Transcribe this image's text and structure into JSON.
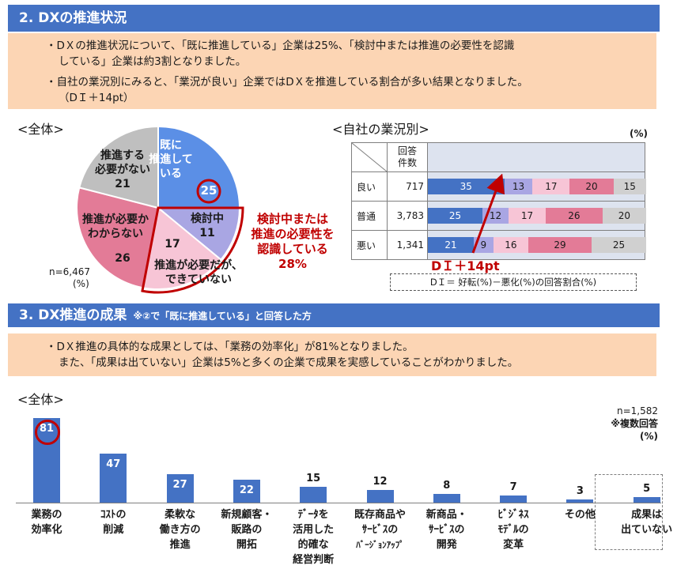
{
  "section2": {
    "title": "2. DXの推進状況",
    "note1_line1": "・DＸの推進状況について、「既に推進している」企業は25%、「検討中または推進の必要性を認識",
    "note1_line2": "している」企業は約3割となりました。",
    "note2_line1": "・自社の業況別にみると、「業況が良い」企業ではDＸを推進している割合が多い結果となりました。",
    "note2_line2": "（DＩ＋14pt）",
    "overall_label": "<全体>",
    "by_status_label": "<自社の業況別>",
    "pct_unit": "(%)",
    "pie_n": "n=6,467",
    "pie_unit": "(%)",
    "callout_l1": "検討中または",
    "callout_l2": "推進の必要性を",
    "callout_l3": "認識している",
    "callout_l4": "28%",
    "di_label": "DＩ＋14pt",
    "di_formula": "DＩ＝ 好転(%)－悪化(%)の回答割合(%)"
  },
  "pie_chart": {
    "type": "pie",
    "slices": [
      {
        "label_l1": "既に",
        "label_l2": "推進して",
        "label_l3": "いる",
        "value": 25,
        "color": "#5b8fe6"
      },
      {
        "label_l1": "検討中",
        "value": 11,
        "color": "#a9a6e3"
      },
      {
        "label_l1": "推進が必要だが、",
        "label_l2": "できていない",
        "value": 17,
        "color": "#f7c5d6"
      },
      {
        "label_l1": "推進が必要か",
        "label_l2": "わからない",
        "value": 26,
        "color": "#e37b97"
      },
      {
        "label_l1": "推進する",
        "label_l2": "必要がない",
        "value": 21,
        "color": "#bfbfbf"
      }
    ]
  },
  "status_table": {
    "header_count_l1": "回答",
    "header_count_l2": "件数",
    "segment_colors": [
      "#4472c4",
      "#a9a6e3",
      "#f7c5d6",
      "#e37b97",
      "#d0d0d0"
    ],
    "rows": [
      {
        "label": "良い",
        "count": "717",
        "values": [
          35,
          13,
          17,
          20,
          15
        ]
      },
      {
        "label": "普通",
        "count": "3,783",
        "values": [
          25,
          12,
          17,
          26,
          20
        ]
      },
      {
        "label": "悪い",
        "count": "1,341",
        "values": [
          21,
          9,
          16,
          29,
          25
        ]
      }
    ]
  },
  "section3": {
    "title": "3. DX推進の成果",
    "subtitle": "※②で「既に推進している」と回答した方",
    "note_line1": "・DＸ推進の具体的な成果としては、「業務の効率化」が81%となりました。",
    "note_line2": "また、「成果は出ていない」企業は5%と多くの企業で成果を実感していることがわかりました。",
    "overall_label": "<全体>",
    "n_label": "n=1,582",
    "multi_label": "※複数回答",
    "unit": "(%)"
  },
  "chart_data": {
    "type": "bar",
    "categories": [
      [
        "業務の",
        "効率化"
      ],
      [
        "ｺｽﾄの",
        "削減"
      ],
      [
        "柔軟な",
        "働き方の",
        "推進"
      ],
      [
        "新規顧客・",
        "販路の",
        "開拓"
      ],
      [
        "ﾃﾞｰﾀを",
        "活用した",
        "的確な",
        "経営判断"
      ],
      [
        "既存商品や",
        "ｻｰﾋﾞｽの",
        "ﾊﾞｰｼﾞｮﾝｱｯﾌﾟ"
      ],
      [
        "新商品・",
        "ｻｰﾋﾞｽの",
        "開発"
      ],
      [
        "ﾋﾞｼﾞﾈｽ",
        "ﾓﾃﾞﾙの",
        "変革"
      ],
      [
        "その他"
      ],
      [
        "成果は",
        "出ていない"
      ]
    ],
    "values": [
      81,
      47,
      27,
      22,
      15,
      12,
      8,
      7,
      3,
      5
    ],
    "ylim": [
      0,
      85
    ],
    "bar_color": "#4472c4"
  }
}
